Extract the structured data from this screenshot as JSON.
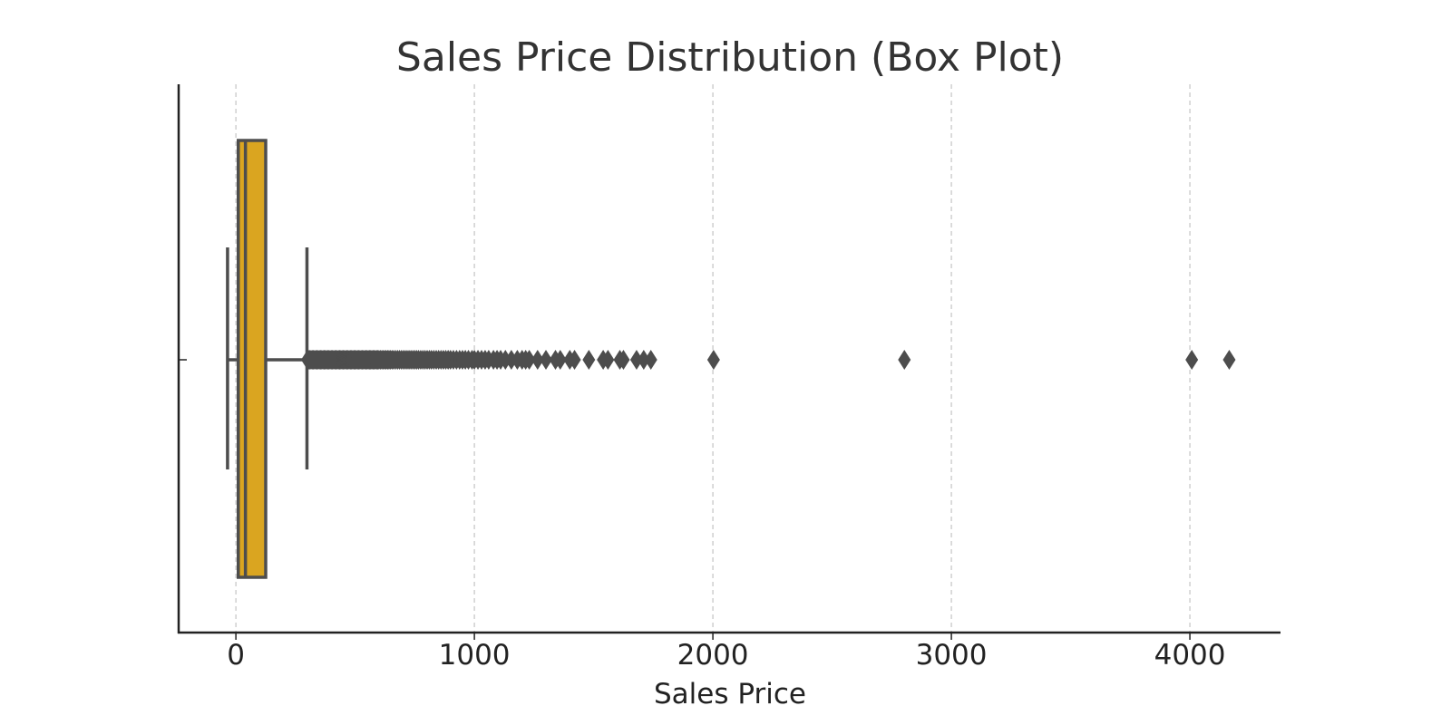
{
  "chart_data": {
    "type": "box",
    "orientation": "horizontal",
    "title": "Sales Price Distribution (Box Plot)",
    "xlabel": "Sales Price",
    "ylabel": "",
    "xlim": [
      -240,
      4380
    ],
    "xticks": [
      0,
      1000,
      2000,
      3000,
      4000
    ],
    "xtick_labels": [
      "0",
      "1000",
      "2000",
      "3000",
      "4000"
    ],
    "grid": {
      "x": true,
      "y": false,
      "style": "dashed"
    },
    "box": {
      "whisker_low": -35,
      "q1": 10,
      "median": 40,
      "q3": 125,
      "whisker_high": 298
    },
    "outliers": [
      300,
      305,
      310,
      315,
      320,
      325,
      330,
      335,
      340,
      345,
      350,
      355,
      360,
      365,
      370,
      375,
      380,
      385,
      390,
      395,
      400,
      405,
      410,
      415,
      420,
      425,
      430,
      435,
      440,
      445,
      450,
      455,
      460,
      465,
      470,
      475,
      480,
      485,
      490,
      495,
      500,
      505,
      510,
      515,
      520,
      525,
      530,
      535,
      540,
      545,
      550,
      555,
      560,
      565,
      570,
      575,
      580,
      585,
      590,
      595,
      600,
      606,
      612,
      618,
      624,
      630,
      636,
      642,
      648,
      655,
      662,
      670,
      678,
      686,
      694,
      702,
      710,
      718,
      726,
      734,
      742,
      750,
      758,
      766,
      775,
      784,
      793,
      802,
      811,
      820,
      830,
      840,
      850,
      860,
      870,
      880,
      890,
      900,
      912,
      925,
      938,
      950,
      962,
      975,
      990,
      1000,
      1015,
      1030,
      1045,
      1060,
      1080,
      1095,
      1110,
      1130,
      1155,
      1180,
      1200,
      1215,
      1230,
      1265,
      1300,
      1340,
      1360,
      1400,
      1420,
      1480,
      1540,
      1560,
      1610,
      1625,
      1680,
      1710,
      1740,
      2003,
      2803,
      4008,
      4165
    ],
    "colors": {
      "box_fill": "#DAA520",
      "lines": "#4d4d4d",
      "outlier": "#4d4d4d",
      "grid": "#c8c8c8",
      "axis": "#222222"
    }
  }
}
